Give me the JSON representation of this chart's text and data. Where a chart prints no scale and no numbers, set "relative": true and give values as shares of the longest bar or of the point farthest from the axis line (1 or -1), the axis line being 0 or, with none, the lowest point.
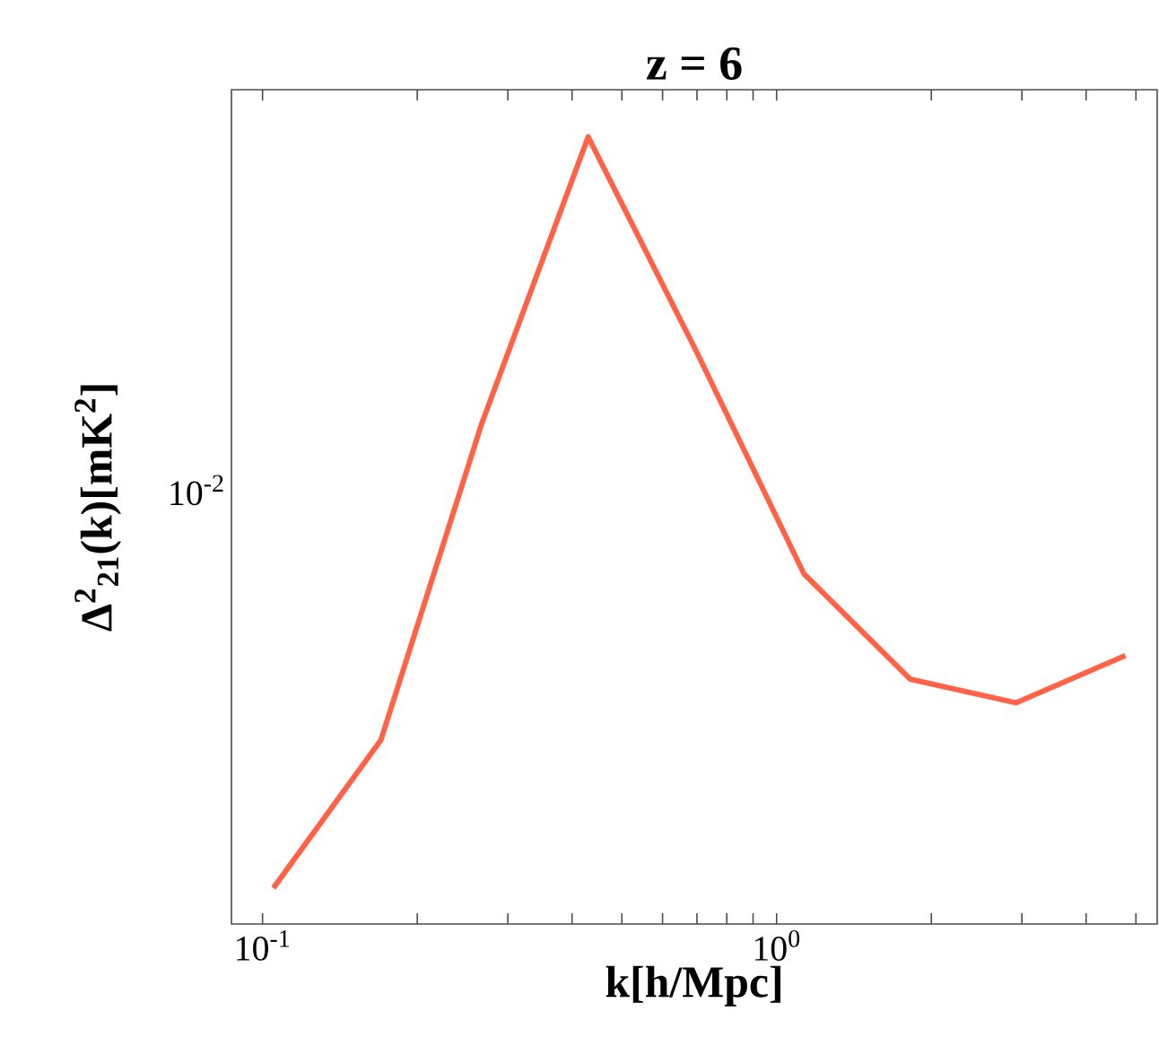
{
  "chart_data": {
    "type": "line",
    "title": "z = 6",
    "xlabel": "k[h/Mpc]",
    "ylabel": "Δ$^{2}$$_{21}$(k)[mK$^{2}$]",
    "log": "x",
    "x": [
      0.105,
      0.17,
      0.267,
      0.43,
      0.7,
      1.13,
      1.82,
      2.92,
      4.77
    ],
    "series": [
      {
        "color": "#ff6347",
        "values": [
          0.0457,
          0.234,
          0.636,
          1,
          0.726,
          0.445,
          0.311,
          0.281,
          0.341
        ]
      }
    ],
    "relative": true,
    "annotations": [
      "10$^{-2}$"
    ],
    "xlim": [
      0.087,
      5.5
    ],
    "xticks": [
      {
        "value": 0.1,
        "label": "10$^{-1}$"
      },
      {
        "value": 0.2,
        "label": null
      },
      {
        "value": 0.3,
        "label": null
      },
      {
        "value": 0.4,
        "label": null
      },
      {
        "value": 0.5,
        "label": null
      },
      {
        "value": 0.6,
        "label": null
      },
      {
        "value": 0.7,
        "label": null
      },
      {
        "value": 0.8,
        "label": null
      },
      {
        "value": 0.9,
        "label": null
      },
      {
        "value": 1,
        "label": "10$^{0}$"
      },
      {
        "value": 2,
        "label": null
      },
      {
        "value": 3,
        "label": null
      },
      {
        "value": 4,
        "label": null
      },
      {
        "value": 5,
        "label": null
      }
    ]
  }
}
